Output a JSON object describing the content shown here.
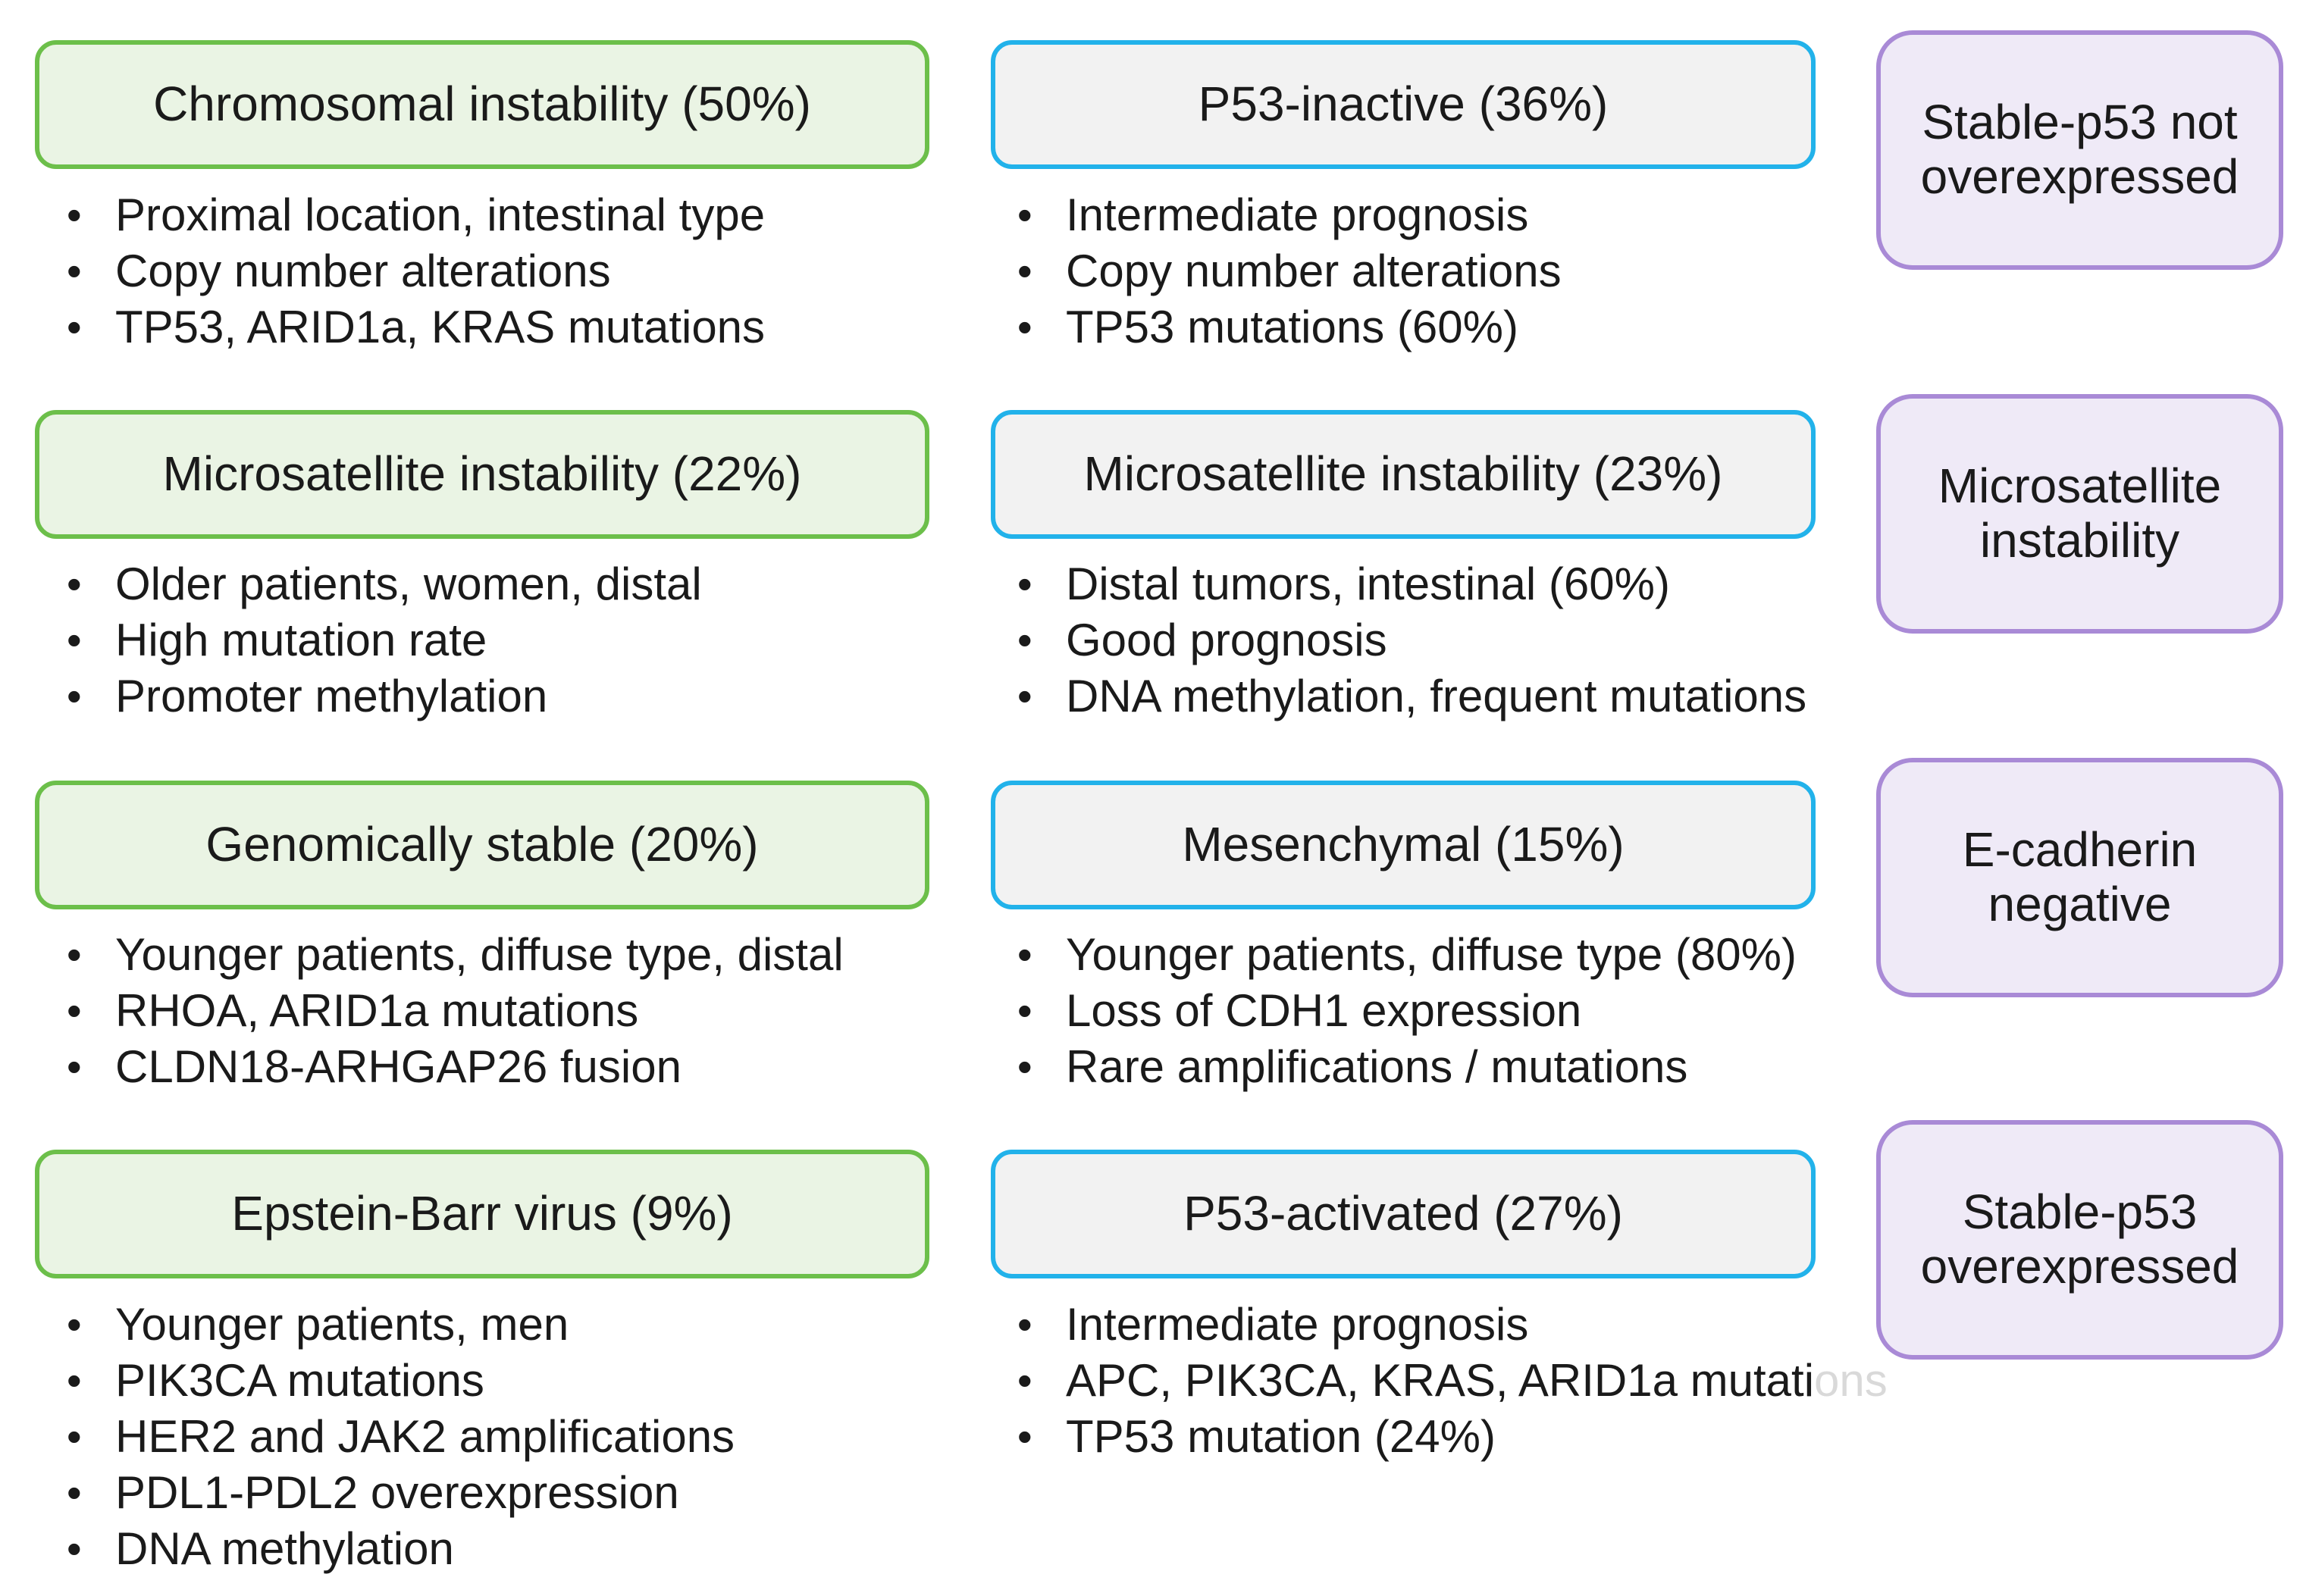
{
  "left_column": [
    {
      "title": "Chromosomal instability (50%)",
      "items": [
        "Proximal location, intestinal type",
        "Copy number alterations",
        "TP53, ARID1a, KRAS mutations"
      ]
    },
    {
      "title": "Microsatellite instability (22%)",
      "items": [
        "Older patients, women, distal",
        "High mutation rate",
        "Promoter methylation"
      ]
    },
    {
      "title": "Genomically stable (20%)",
      "items": [
        "Younger patients, diffuse type, distal",
        "RHOA, ARID1a mutations",
        "CLDN18-ARHGAP26 fusion"
      ]
    },
    {
      "title": "Epstein-Barr virus (9%)",
      "items": [
        "Younger patients, men",
        "PIK3CA mutations",
        "HER2 and JAK2 amplifications",
        "PDL1-PDL2 overexpression",
        "DNA methylation"
      ]
    }
  ],
  "middle_column": [
    {
      "title": "P53-inactive (36%)",
      "items": [
        "Intermediate prognosis",
        "Copy number alterations",
        "TP53 mutations (60%)"
      ]
    },
    {
      "title": "Microsatellite instability (23%)",
      "items": [
        "Distal tumors, intestinal (60%)",
        "Good prognosis",
        "DNA methylation, frequent mutations"
      ]
    },
    {
      "title": "Mesenchymal (15%)",
      "items": [
        "Younger patients, diffuse type (80%)",
        "Loss of CDH1 expression",
        "Rare amplifications / mutations"
      ]
    },
    {
      "title": "P53-activated (27%)",
      "items": [
        "Intermediate prognosis",
        "APC, PIK3CA, KRAS, ARID1a mutati",
        "TP53 mutation (24%)"
      ],
      "faded_suffix": "ons"
    }
  ],
  "right_column": [
    {
      "line1": "Stable-p53 not",
      "line2": "overexpressed"
    },
    {
      "line1": "Microsatellite",
      "line2": "instability"
    },
    {
      "line1": "E-cadherin",
      "line2": "negative"
    },
    {
      "line1": "Stable-p53",
      "line2": "overexpressed"
    }
  ]
}
